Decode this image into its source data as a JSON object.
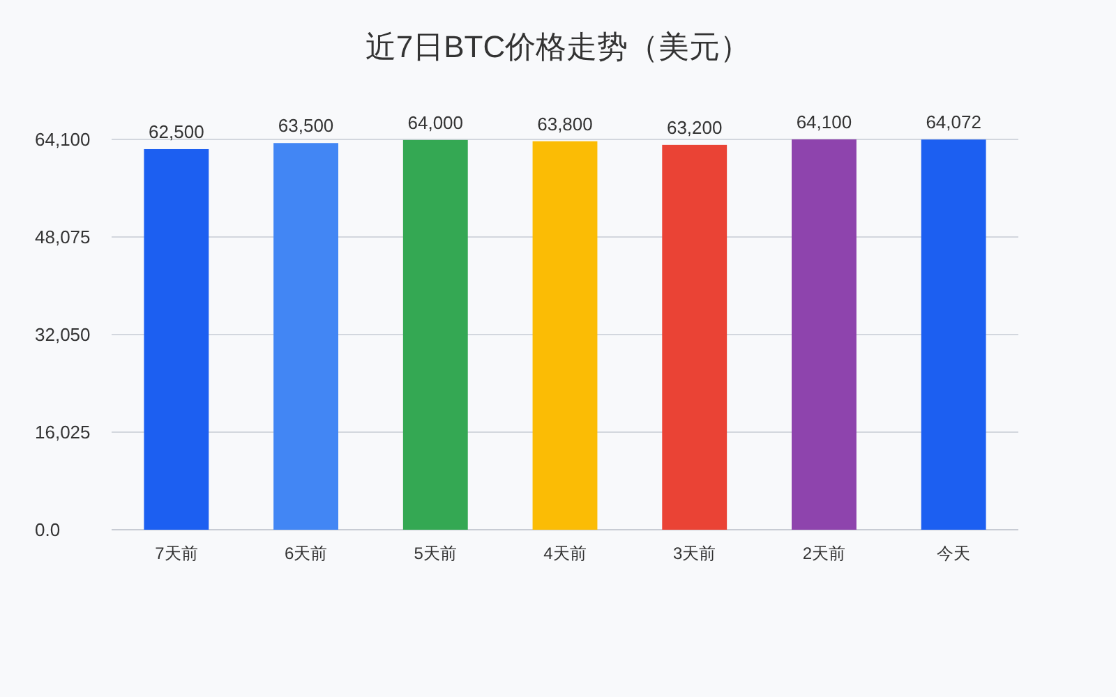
{
  "chart_data": {
    "type": "bar",
    "title": "近7日BTC价格走势（美元）",
    "categories": [
      "7天前",
      "6天前",
      "5天前",
      "4天前",
      "3天前",
      "2天前",
      "今天"
    ],
    "values": [
      62500,
      63500,
      64000,
      63800,
      63200,
      64100,
      64072
    ],
    "colors": [
      "#1c5ff1",
      "#4286f4",
      "#34a853",
      "#fbbc05",
      "#ea4335",
      "#8e44ad",
      "#1c5ff1"
    ],
    "value_labels": [
      "62,500",
      "63,500",
      "64,000",
      "63,800",
      "63,200",
      "64,100",
      "64,072"
    ],
    "ylim": [
      0,
      64100
    ],
    "yticks": [
      {
        "value": 0,
        "label": "0.0"
      },
      {
        "value": 16025,
        "label": "16,025"
      },
      {
        "value": 32050,
        "label": "32,050"
      },
      {
        "value": 48075,
        "label": "48,075"
      },
      {
        "value": 64100,
        "label": "64,100"
      }
    ],
    "grid": "y"
  }
}
